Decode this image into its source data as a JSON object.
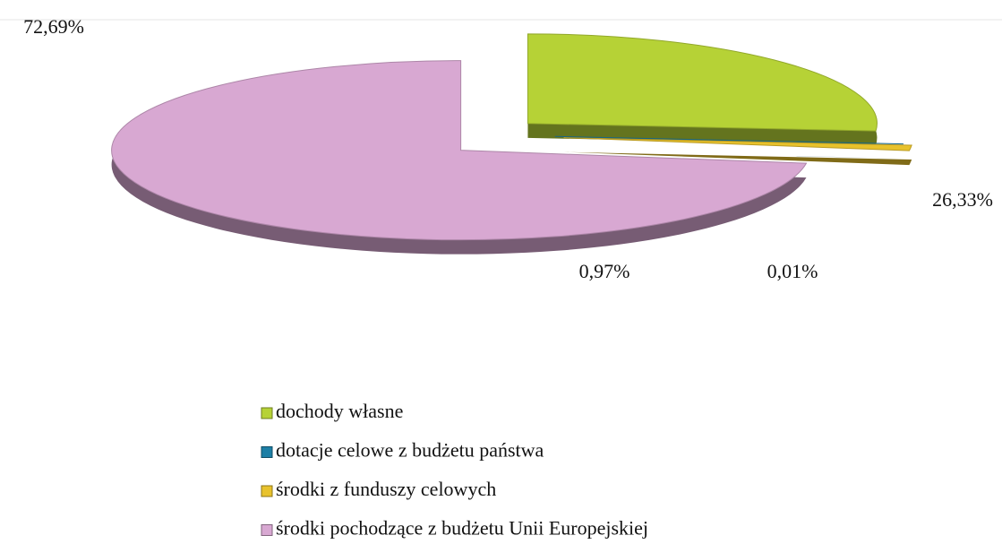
{
  "chart_data": {
    "type": "pie",
    "categories": [
      "dochody własne",
      "dotacje celowe z budżetu państwa",
      "środki z funduszy celowych",
      "środki pochodzące z budżetu Unii Europejskiej"
    ],
    "values": [
      26.33,
      0.01,
      0.97,
      72.69
    ],
    "value_labels": [
      "26,33%",
      "0,01%",
      "0,97%",
      "72,69%"
    ],
    "colors": [
      "#b6d236",
      "#1d7fa6",
      "#e8c22c",
      "#d8a8d2"
    ],
    "legend": "bottom"
  }
}
